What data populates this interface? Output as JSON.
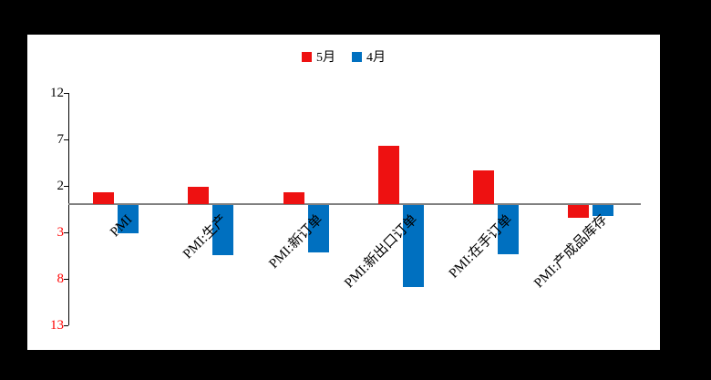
{
  "chart_data": {
    "type": "bar",
    "title": "",
    "categories": [
      "PMI",
      "PMI:生产",
      "PMI:新订单",
      "PMI:新出口订单",
      "PMI:在手订单",
      "PMI:产成品库存"
    ],
    "series": [
      {
        "name": "5月",
        "color": "#ee1111",
        "values": [
          1.3,
          1.9,
          1.3,
          6.3,
          3.6,
          -1.4
        ]
      },
      {
        "name": "4月",
        "color": "#0070c0",
        "values": [
          -3.0,
          -5.4,
          -5.1,
          -8.8,
          -5.3,
          -1.2
        ]
      }
    ],
    "ylim": [
      -13,
      12
    ],
    "yticks": [
      {
        "value": 12,
        "label": "12"
      },
      {
        "value": 7,
        "label": "7"
      },
      {
        "value": 2,
        "label": "2"
      },
      {
        "value": -3,
        "label": "3"
      },
      {
        "value": -8,
        "label": "8"
      },
      {
        "value": -13,
        "label": "13"
      }
    ],
    "xlabel": "",
    "ylabel": "",
    "grid": false,
    "legend_position": "top-center",
    "colors": {
      "plot_background": "#ffffff",
      "page_background": "#000000",
      "positive_tick_label": "#000000",
      "negative_tick_label": "#ff0000",
      "zero_axis_line": "#808080",
      "y_axis_line": "#000000"
    }
  }
}
